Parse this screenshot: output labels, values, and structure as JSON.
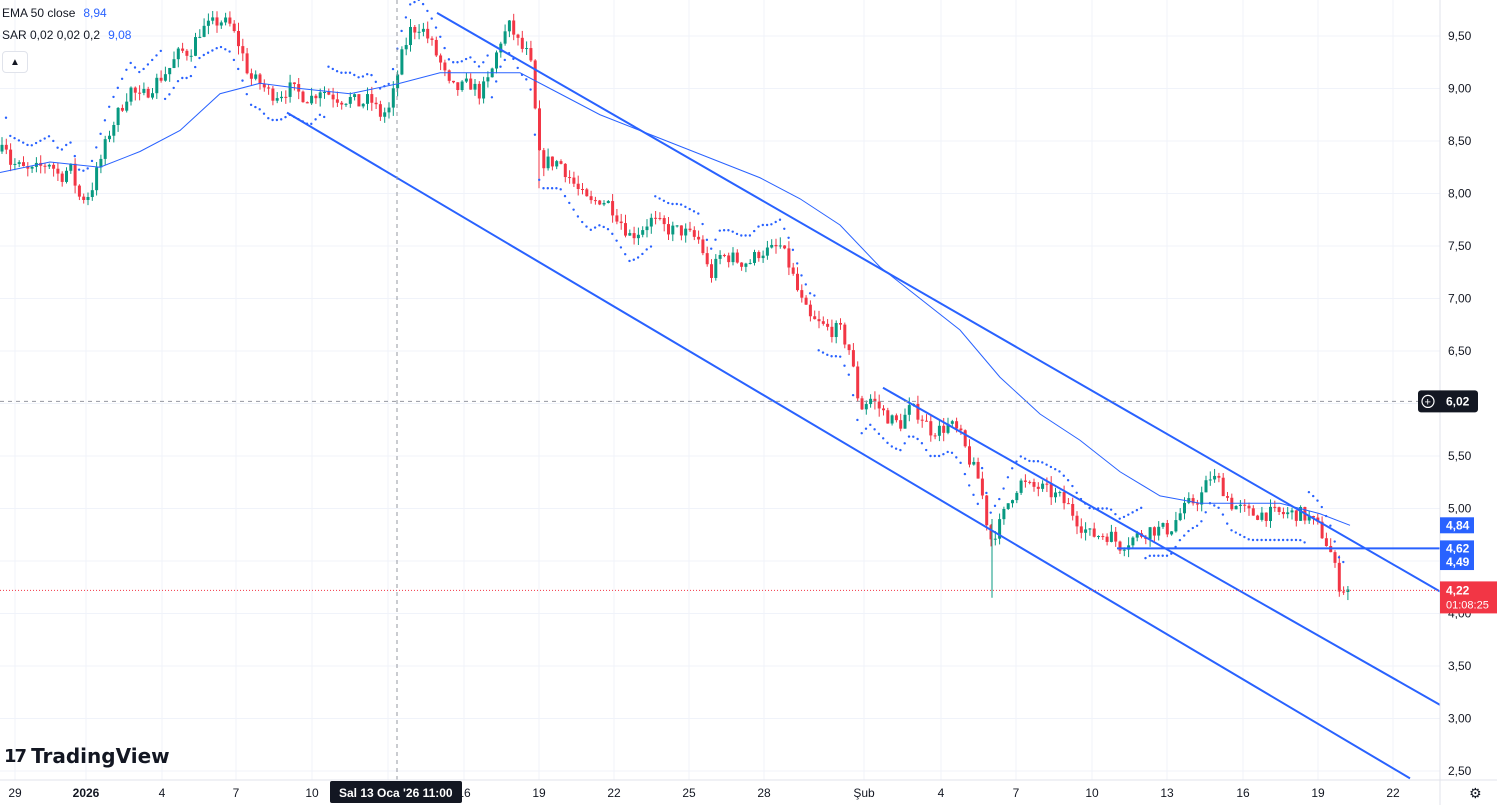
{
  "legend": {
    "ema_label": "EMA 50 close",
    "ema_value": "8,94",
    "sar_label": "SAR 0,02 0,02 0,2",
    "sar_value": "9,08"
  },
  "brand": {
    "name": "TradingView",
    "mark": "17"
  },
  "colors": {
    "up": "#089981",
    "down": "#f23645",
    "ema": "#2962ff",
    "sar": "#2962ff",
    "trend": "#2962ff",
    "grid": "#f0f3fa",
    "text": "#131722",
    "last_price": "#f23645"
  },
  "chart_data": {
    "type": "candlestick",
    "x_ticks": [
      "29",
      "2026",
      "4",
      "7",
      "10",
      "13",
      "16",
      "19",
      "22",
      "25",
      "28",
      "Şub",
      "4",
      "7",
      "10",
      "13",
      "16",
      "19",
      "22"
    ],
    "y_ticks": [
      "9,50",
      "9,00",
      "8,50",
      "8,00",
      "7,50",
      "7,00",
      "6,50",
      "6,00",
      "5,50",
      "5,00",
      "4,50",
      "4,00",
      "3,50",
      "3,00",
      "2,50"
    ],
    "ylim": [
      2.45,
      9.85
    ],
    "crosshair": {
      "price_label": "6,02",
      "time_label": "Sal 13 Oca '26   11:00",
      "price": 6.02
    },
    "last_price": {
      "label": "4,22",
      "countdown": "01:08:25",
      "price": 4.22
    },
    "price_labels": [
      {
        "label": "4,84",
        "price": 4.84
      },
      {
        "label": "4,62",
        "price": 4.62
      },
      {
        "label": "4,49",
        "price": 4.49
      }
    ],
    "trend_lines": [
      {
        "name": "upper-channel",
        "p1": [
          9.72,
          "Oca 14"
        ],
        "p2": [
          4.21,
          "Şub 22"
        ]
      },
      {
        "name": "lower-channel",
        "p1": [
          8.77,
          "Oca 9"
        ],
        "p2": [
          2.43,
          "Şub 22"
        ]
      },
      {
        "name": "inner-channel",
        "p1": [
          6.15,
          "Şub 1"
        ],
        "p2": [
          3.13,
          "Şub 22"
        ]
      },
      {
        "name": "support-horizontal",
        "price": 4.62
      }
    ],
    "price_path": [
      [
        0,
        8.4
      ],
      [
        3,
        8.6
      ],
      [
        10,
        8.3
      ],
      [
        20,
        8.25
      ],
      [
        30,
        8.2
      ],
      [
        40,
        8.25
      ],
      [
        50,
        8.3
      ],
      [
        60,
        8.15
      ],
      [
        70,
        8.25
      ],
      [
        80,
        7.95
      ],
      [
        90,
        8.0
      ],
      [
        100,
        8.3
      ],
      [
        110,
        8.6
      ],
      [
        120,
        8.8
      ],
      [
        130,
        9.0
      ],
      [
        140,
        8.9
      ],
      [
        150,
        9.0
      ],
      [
        160,
        9.1
      ],
      [
        170,
        9.2
      ],
      [
        180,
        9.35
      ],
      [
        190,
        9.35
      ],
      [
        200,
        9.55
      ],
      [
        210,
        9.6
      ],
      [
        220,
        9.65
      ],
      [
        230,
        9.6
      ],
      [
        240,
        9.4
      ],
      [
        250,
        9.1
      ],
      [
        260,
        9.05
      ],
      [
        270,
        8.95
      ],
      [
        280,
        8.95
      ],
      [
        290,
        9.0
      ],
      [
        300,
        8.95
      ],
      [
        310,
        8.9
      ],
      [
        320,
        9.0
      ],
      [
        330,
        8.95
      ],
      [
        340,
        8.9
      ],
      [
        350,
        8.9
      ],
      [
        360,
        8.85
      ],
      [
        370,
        8.9
      ],
      [
        380,
        8.75
      ],
      [
        390,
        8.8
      ],
      [
        400,
        9.25
      ],
      [
        410,
        9.55
      ],
      [
        420,
        9.6
      ],
      [
        430,
        9.45
      ],
      [
        440,
        9.25
      ],
      [
        450,
        9.0
      ],
      [
        460,
        9.0
      ],
      [
        470,
        9.05
      ],
      [
        480,
        8.95
      ],
      [
        490,
        9.1
      ],
      [
        500,
        9.45
      ],
      [
        510,
        9.6
      ],
      [
        520,
        9.4
      ],
      [
        530,
        9.3
      ],
      [
        540,
        8.3
      ],
      [
        550,
        8.3
      ],
      [
        560,
        8.3
      ],
      [
        570,
        8.15
      ],
      [
        580,
        8.0
      ],
      [
        590,
        7.9
      ],
      [
        600,
        7.95
      ],
      [
        610,
        7.9
      ],
      [
        620,
        7.75
      ],
      [
        630,
        7.6
      ],
      [
        640,
        7.65
      ],
      [
        650,
        7.75
      ],
      [
        660,
        7.7
      ],
      [
        670,
        7.65
      ],
      [
        680,
        7.65
      ],
      [
        690,
        7.6
      ],
      [
        700,
        7.55
      ],
      [
        710,
        7.2
      ],
      [
        720,
        7.4
      ],
      [
        730,
        7.4
      ],
      [
        740,
        7.35
      ],
      [
        750,
        7.35
      ],
      [
        760,
        7.45
      ],
      [
        770,
        7.45
      ],
      [
        780,
        7.5
      ],
      [
        790,
        7.3
      ],
      [
        800,
        7.0
      ],
      [
        810,
        6.8
      ],
      [
        820,
        6.75
      ],
      [
        830,
        6.7
      ],
      [
        840,
        6.7
      ],
      [
        850,
        6.5
      ],
      [
        860,
        5.95
      ],
      [
        870,
        6.05
      ],
      [
        880,
        5.95
      ],
      [
        890,
        5.85
      ],
      [
        900,
        5.8
      ],
      [
        910,
        5.95
      ],
      [
        920,
        5.9
      ],
      [
        930,
        5.75
      ],
      [
        940,
        5.75
      ],
      [
        950,
        5.8
      ],
      [
        960,
        5.7
      ],
      [
        970,
        5.45
      ],
      [
        980,
        5.25
      ],
      [
        990,
        4.7
      ],
      [
        1000,
        4.85
      ],
      [
        1010,
        5.1
      ],
      [
        1020,
        5.25
      ],
      [
        1030,
        5.2
      ],
      [
        1040,
        5.2
      ],
      [
        1050,
        5.15
      ],
      [
        1060,
        5.1
      ],
      [
        1070,
        5.0
      ],
      [
        1080,
        4.85
      ],
      [
        1090,
        4.75
      ],
      [
        1100,
        4.75
      ],
      [
        1110,
        4.75
      ],
      [
        1120,
        4.65
      ],
      [
        1130,
        4.7
      ],
      [
        1140,
        4.75
      ],
      [
        1150,
        4.8
      ],
      [
        1160,
        4.8
      ],
      [
        1170,
        4.8
      ],
      [
        1180,
        4.95
      ],
      [
        1190,
        5.05
      ],
      [
        1200,
        5.1
      ],
      [
        1210,
        5.3
      ],
      [
        1220,
        5.25
      ],
      [
        1230,
        5.05
      ],
      [
        1240,
        5.0
      ],
      [
        1250,
        4.95
      ],
      [
        1260,
        4.95
      ],
      [
        1270,
        4.95
      ],
      [
        1280,
        4.95
      ],
      [
        1290,
        4.95
      ],
      [
        1300,
        4.95
      ],
      [
        1310,
        4.9
      ],
      [
        1320,
        4.8
      ],
      [
        1330,
        4.6
      ],
      [
        1340,
        4.25
      ],
      [
        1350,
        4.22
      ]
    ],
    "ema_path": [
      [
        0,
        8.2
      ],
      [
        50,
        8.3
      ],
      [
        100,
        8.25
      ],
      [
        140,
        8.4
      ],
      [
        180,
        8.6
      ],
      [
        220,
        8.95
      ],
      [
        260,
        9.05
      ],
      [
        300,
        9.0
      ],
      [
        350,
        8.95
      ],
      [
        400,
        9.05
      ],
      [
        440,
        9.15
      ],
      [
        480,
        9.15
      ],
      [
        520,
        9.15
      ],
      [
        560,
        8.95
      ],
      [
        600,
        8.75
      ],
      [
        640,
        8.6
      ],
      [
        680,
        8.45
      ],
      [
        720,
        8.3
      ],
      [
        760,
        8.15
      ],
      [
        800,
        7.95
      ],
      [
        840,
        7.7
      ],
      [
        880,
        7.3
      ],
      [
        920,
        7.0
      ],
      [
        960,
        6.7
      ],
      [
        1000,
        6.25
      ],
      [
        1040,
        5.9
      ],
      [
        1080,
        5.65
      ],
      [
        1120,
        5.35
      ],
      [
        1160,
        5.12
      ],
      [
        1200,
        5.05
      ],
      [
        1240,
        5.05
      ],
      [
        1280,
        5.05
      ],
      [
        1320,
        4.95
      ],
      [
        1350,
        4.84
      ]
    ]
  }
}
